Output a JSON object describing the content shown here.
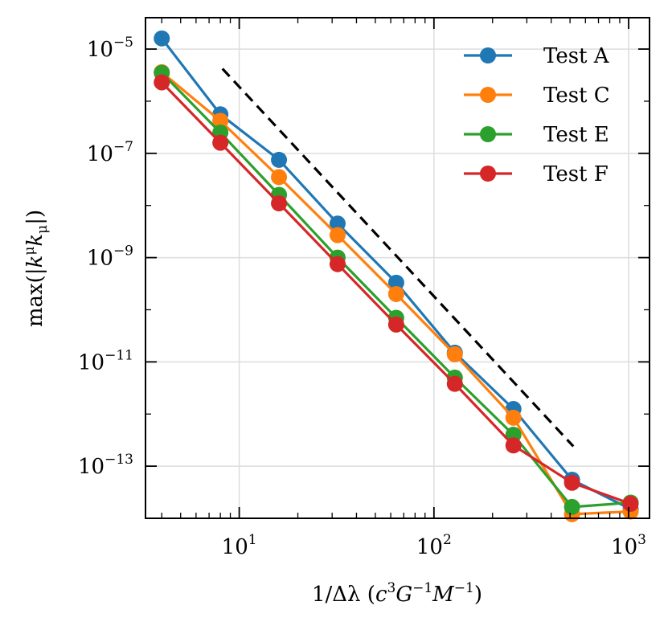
{
  "chart_data": {
    "type": "line",
    "title": "",
    "xscale": "log",
    "yscale": "log",
    "xlim": [
      3.3,
      1280
    ],
    "ylim": [
      1e-14,
      4e-05
    ],
    "xlabel": {
      "prefix": "1/Δλ (",
      "c": "c",
      "c_exp": "3",
      "G": "G",
      "G_exp": "−1",
      "M": "M",
      "M_exp": "−1",
      "suffix": ")"
    },
    "ylabel": {
      "prefix": "max(|",
      "k1": "k",
      "k1_sup": "μ",
      "k2": "k",
      "k2_sub": "μ",
      "suffix": "|)"
    },
    "x_ticks": [
      {
        "value": 10,
        "base": "10",
        "exp": "1"
      },
      {
        "value": 100,
        "base": "10",
        "exp": "2"
      },
      {
        "value": 1000,
        "base": "10",
        "exp": "3"
      }
    ],
    "y_ticks": [
      {
        "value": 1e-05,
        "base": "10",
        "exp": "−5"
      },
      {
        "value": 1e-07,
        "base": "10",
        "exp": "−7"
      },
      {
        "value": 1e-09,
        "base": "10",
        "exp": "−9"
      },
      {
        "value": 1e-11,
        "base": "10",
        "exp": "−11"
      },
      {
        "value": 1e-13,
        "base": "10",
        "exp": "−13"
      }
    ],
    "grid": true,
    "legend_position": "top-right",
    "x": [
      4,
      8,
      16,
      32,
      64,
      128,
      256,
      512,
      1024
    ],
    "series": [
      {
        "name": "Test  A",
        "color": "#1f77b4",
        "values": [
          1.6e-05,
          5.6e-07,
          7.5e-08,
          4.5e-09,
          3.3e-10,
          1.5e-11,
          1.25e-12,
          5.5e-14,
          1.5e-14
        ]
      },
      {
        "name": "Test  C",
        "color": "#ff7f0e",
        "values": [
          3.6e-06,
          4.2e-07,
          3.5e-08,
          2.7e-09,
          2e-10,
          1.4e-11,
          8.5e-13,
          1.2e-14,
          1.35e-14
        ]
      },
      {
        "name": "Test  E",
        "color": "#2ca02c",
        "values": [
          3.5e-06,
          2.5e-07,
          1.6e-08,
          1e-09,
          7e-11,
          5e-12,
          4e-13,
          1.65e-14,
          2e-14
        ]
      },
      {
        "name": "Test  F",
        "color": "#d62728",
        "values": [
          2.3e-06,
          1.6e-07,
          1.1e-08,
          7.5e-10,
          5.2e-11,
          3.8e-12,
          2.5e-13,
          4.8e-14,
          1.9e-14
        ]
      }
    ],
    "reference_line": {
      "style": "dashed",
      "color": "#000000",
      "x": [
        8.2,
        520
      ],
      "y": [
        4.2e-06,
        2.4e-13
      ]
    }
  }
}
